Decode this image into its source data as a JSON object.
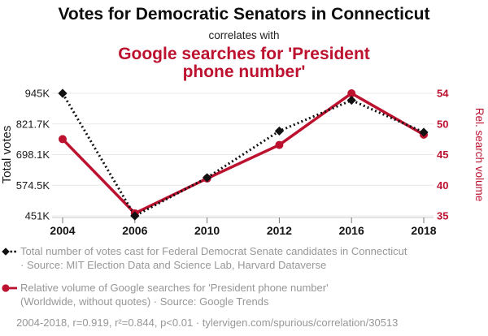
{
  "header": {
    "title": "Votes for Democratic Senators in Connecticut",
    "connector": "correlates with",
    "subtitle_line1": "Google searches for 'President",
    "subtitle_line2": "phone number'"
  },
  "colors": {
    "accent_red": "#bc122f",
    "series_black": "#111111",
    "legend_gray": "#979797",
    "gridline": "#e9e9e9",
    "axis_line": "#c9c9c9"
  },
  "chart_data": {
    "type": "line",
    "title": "Votes for Democratic Senators in Connecticut",
    "subtitle": "correlates with Google searches for 'President phone number'",
    "x": [
      2004,
      2006,
      2010,
      2012,
      2016,
      2018
    ],
    "x_tick_labels": [
      "2004",
      "2006",
      "2010",
      "2012",
      "2016",
      "2018"
    ],
    "series": [
      {
        "name": "Total number of votes cast for Federal Democrat Senate candidates in Connecticut",
        "axis": "left",
        "color": "#111111",
        "line_style": "dotted",
        "marker": "diamond",
        "values": [
          945000,
          451000,
          605000,
          793000,
          917000,
          788000
        ]
      },
      {
        "name": "Relative volume of Google searches for 'President phone number'",
        "axis": "right",
        "color": "#bc122f",
        "line_style": "solid",
        "marker": "circle",
        "values": [
          46.9,
          35.4,
          40.8,
          46.0,
          54.0,
          47.6
        ]
      }
    ],
    "left_axis": {
      "label": "Total votes",
      "ticks": [
        "945K",
        "821.7K",
        "698.1K",
        "574.5K",
        "451K"
      ],
      "tick_values": [
        945000,
        821700,
        698100,
        574500,
        451000
      ],
      "range": [
        451000,
        945000
      ]
    },
    "right_axis": {
      "label": "Rel. search volume",
      "ticks": [
        "54",
        "50",
        "45",
        "40",
        "35"
      ],
      "tick_values": [
        54,
        50,
        45,
        40,
        35
      ],
      "range": [
        35,
        54
      ]
    },
    "grid": true,
    "legend_position": "below"
  },
  "legend": {
    "series1": {
      "line1": "Total number of votes cast for Federal Democrat Senate candidates in Connecticut",
      "line2": "· Source: MIT Election Data and Science Lab, Harvard Dataverse"
    },
    "series2": {
      "line1": "Relative volume of Google searches for 'President phone number'",
      "line2": "(Worldwide, without quotes) · Source: Google Trends"
    }
  },
  "footer": {
    "text": "2004-2018, r=0.919, r²=0.844, p<0.01 · tylervigen.com/spurious/correlation/30513"
  }
}
